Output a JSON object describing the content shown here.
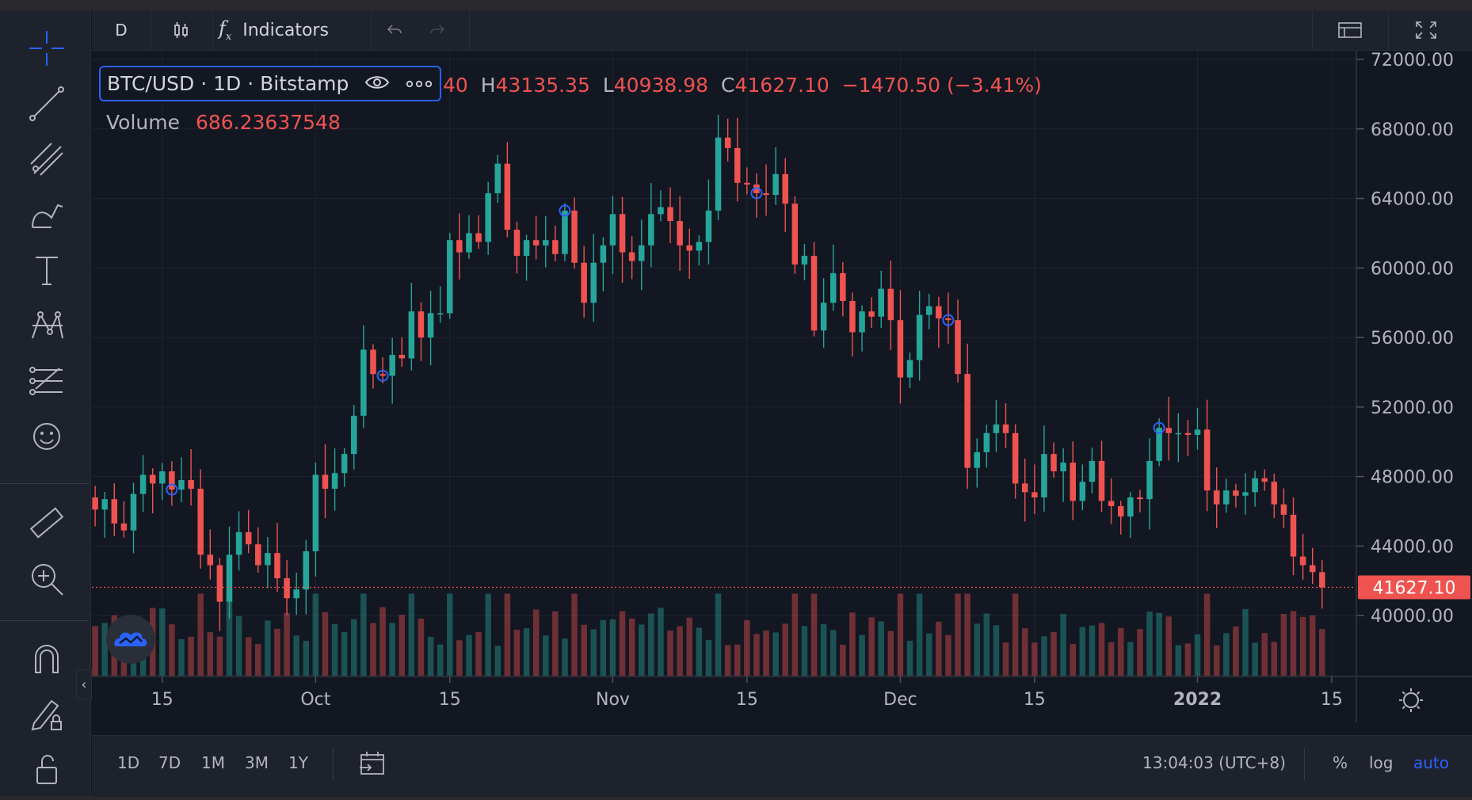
{
  "toolbar": {
    "interval": "D",
    "indicators_label": "Indicators"
  },
  "legend": {
    "symbol": "BTC/USD · 1D · Bitstamp",
    "open_tail": "40",
    "high_prefix": "H",
    "high": "43135.35",
    "low_prefix": "L",
    "low": "40938.98",
    "close_prefix": "C",
    "close": "41627.10",
    "change": "−1470.50 (−3.41%)",
    "volume_label": "Volume",
    "volume_value": "686.23637548"
  },
  "bottom": {
    "ranges": [
      "1D",
      "7D",
      "1M",
      "3M",
      "1Y"
    ],
    "clock": "13:04:03 (UTC+8)",
    "percent_label": "%",
    "log_label": "log",
    "auto_label": "auto"
  },
  "colors": {
    "up": "#26a69a",
    "down": "#ef5350",
    "background": "#131722",
    "marker": "#2962ff",
    "auto": "#2962ff"
  },
  "icons": {
    "left_toolbar": [
      "crosshair-icon",
      "trend-line-icon",
      "pitchfork-icon",
      "brush-icon",
      "text-icon",
      "pattern-icon",
      "prediction-icon",
      "emoji-icon",
      "ruler-icon",
      "zoom-in-icon",
      "magnet-icon",
      "lock-drawing-icon",
      "unlock-icon"
    ]
  },
  "chart_data": {
    "type": "candlestick",
    "symbol": "BTC/USD",
    "price_axis": {
      "ticks": [
        "72000.00",
        "68000.00",
        "64000.00",
        "60000.00",
        "56000.00",
        "52000.00",
        "48000.00",
        "44000.00",
        "40000.00"
      ],
      "range": [
        36500,
        72500
      ]
    },
    "time_axis": {
      "ticks": [
        {
          "label": "15",
          "date": "2021-09-15"
        },
        {
          "label": "Oct",
          "date": "2021-10-01"
        },
        {
          "label": "15",
          "date": "2021-10-15"
        },
        {
          "label": "Nov",
          "date": "2021-11-01"
        },
        {
          "label": "15",
          "date": "2021-11-15"
        },
        {
          "label": "Dec",
          "date": "2021-12-01"
        },
        {
          "label": "15",
          "date": "2021-12-15"
        },
        {
          "label": "2022",
          "date": "2022-01-01"
        },
        {
          "label": "15",
          "date": "2022-01-15"
        }
      ],
      "first_date": "2021-09-07",
      "last_date": "2022-01-05",
      "visible_end": "2022-01-16"
    },
    "last_price": "41627.10",
    "candles_close": [
      46800,
      46100,
      46700,
      45300,
      44900,
      47000,
      48100,
      47600,
      48300,
      47250,
      47800,
      47300,
      43500,
      42900,
      40800,
      43500,
      44800,
      44100,
      42900,
      43600,
      42150,
      41000,
      41500,
      43700,
      48100,
      47300,
      48200,
      49300,
      51500,
      55300,
      53900,
      53800,
      55000,
      54800,
      57500,
      56000,
      57400,
      57400,
      61600,
      60900,
      62000,
      61500,
      64300,
      66000,
      62200,
      60700,
      61600,
      61300,
      61600,
      60800,
      63300,
      60300,
      58000,
      60300,
      61300,
      63100,
      60900,
      60400,
      61300,
      63100,
      63500,
      62700,
      61300,
      61000,
      61500,
      63300,
      67500,
      66900,
      64900,
      64800,
      64300,
      64200,
      65400,
      63700,
      60200,
      60700,
      56400,
      58000,
      59700,
      58100,
      56300,
      57500,
      57200,
      58800,
      57000,
      53700,
      54700,
      57300,
      57800,
      57100,
      57000,
      53900,
      48500,
      49400,
      50500,
      51000,
      50500,
      47600,
      47100,
      46800,
      49300,
      48300,
      48800,
      46600,
      47700,
      48900,
      46600,
      46300,
      45700,
      46800,
      46700,
      48900,
      50800,
      50500,
      50500,
      50400,
      50700,
      47200,
      46400,
      47200,
      46900,
      47100,
      47900,
      47700,
      46400,
      45800,
      43400,
      42900,
      42500,
      41627
    ],
    "volume_note": "volume histogram below price series",
    "markers_dates": [
      "2021-09-16",
      "2021-10-08",
      "2021-10-27",
      "2021-11-16",
      "2021-12-06",
      "2021-12-28"
    ]
  }
}
